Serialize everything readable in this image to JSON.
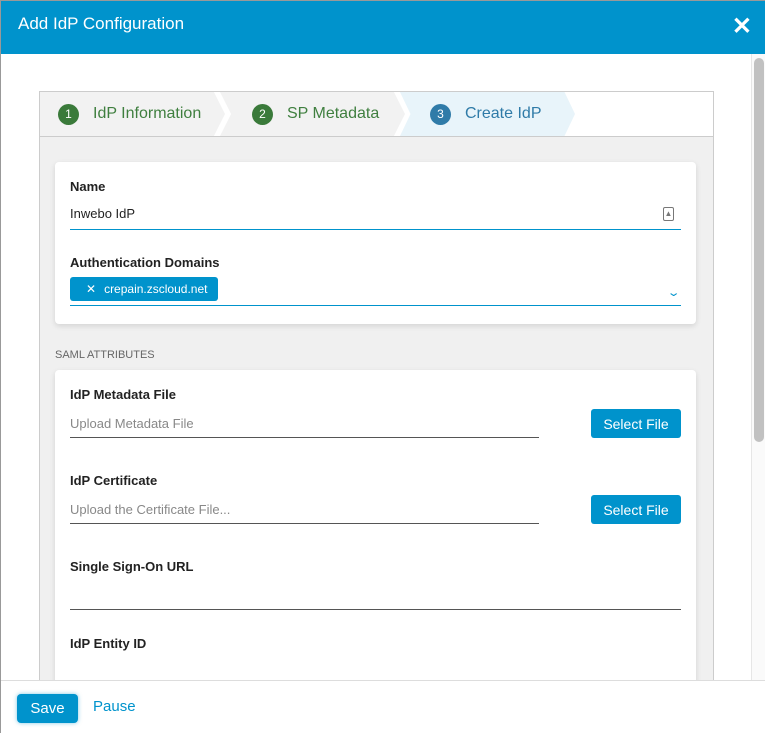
{
  "header": {
    "title": "Add IdP Configuration",
    "close_icon": "close-icon"
  },
  "steps": [
    {
      "num": "1",
      "label": "IdP Information",
      "state": "done"
    },
    {
      "num": "2",
      "label": "SP Metadata",
      "state": "done"
    },
    {
      "num": "3",
      "label": "Create IdP",
      "state": "active"
    }
  ],
  "general": {
    "name_label": "Name",
    "name_value": "Inwebo IdP",
    "domains_label": "Authentication Domains",
    "domains": [
      "crepain.zscloud.net"
    ]
  },
  "saml": {
    "section_label": "SAML ATTRIBUTES",
    "metadata_label": "IdP Metadata File",
    "metadata_placeholder": "Upload Metadata File",
    "metadata_button": "Select File",
    "cert_label": "IdP Certificate",
    "cert_placeholder": "Upload the Certificate File...",
    "cert_button": "Select File",
    "sso_label": "Single Sign-On URL",
    "entity_label": "IdP Entity ID"
  },
  "footer": {
    "save": "Save",
    "pause": "Pause"
  },
  "colors": {
    "accent": "#0093cc",
    "done": "#3a7a3a",
    "active": "#2f7ba8"
  }
}
